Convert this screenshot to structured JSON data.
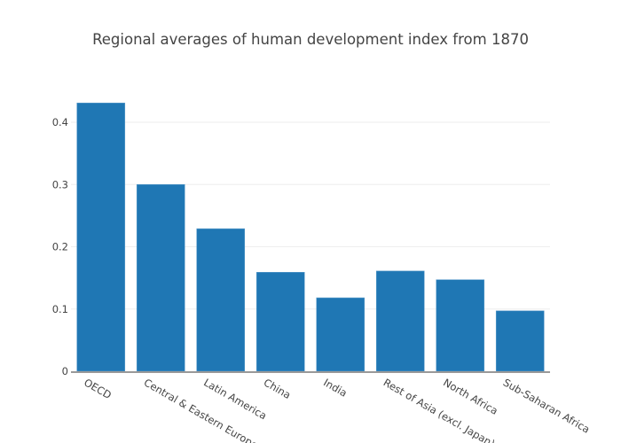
{
  "chart_data": {
    "type": "bar",
    "title": "Regional averages of human development index from 1870",
    "xlabel": "",
    "ylabel": "",
    "categories": [
      "OECD",
      "Central & Eastern Europe (incl. Russia)",
      "Latin America",
      "China",
      "India",
      "Rest of Asia (excl. Japan)",
      "North Africa",
      "Sub-Saharan Africa"
    ],
    "category_labels_visible": [
      "OECD",
      "Central & Eastern Europe (i",
      "Latin America",
      "China",
      "India",
      "Rest of Asia (excl. Japan)",
      "North Africa",
      "Sub-Saharan Africa"
    ],
    "values": [
      0.431,
      0.3,
      0.229,
      0.159,
      0.118,
      0.161,
      0.147,
      0.097
    ],
    "ylim": [
      0,
      0.4
    ],
    "yticks": [
      0,
      0.1,
      0.2,
      0.3,
      0.4
    ],
    "ytick_labels": [
      "0",
      "0.1",
      "0.2",
      "0.3",
      "0.4"
    ],
    "grid": true,
    "legend": "none",
    "bar_color": "#1f77b4"
  }
}
